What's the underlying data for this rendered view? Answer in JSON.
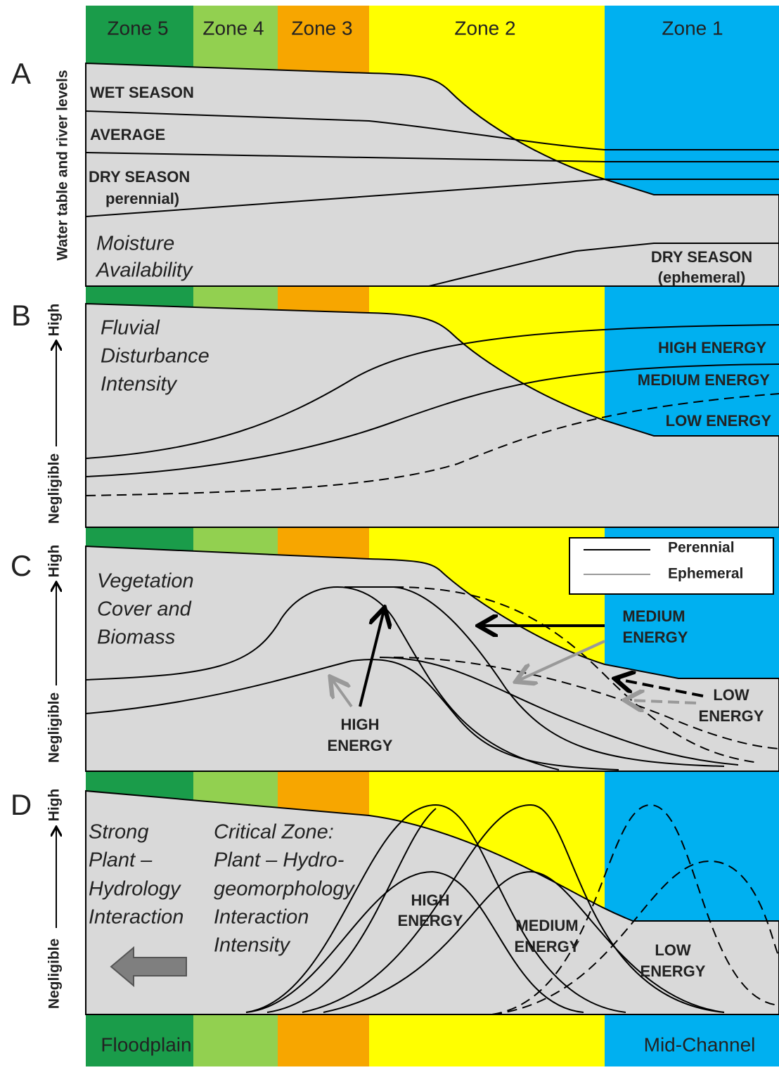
{
  "zones": [
    "Zone 5",
    "Zone 4",
    "Zone 3",
    "Zone 2",
    "Zone 1"
  ],
  "panels": {
    "A": {
      "letter": "A",
      "axis_label": "Water table and river levels",
      "labels": [
        "WET SEASON",
        "AVERAGE",
        "DRY SEASON",
        "perennial)",
        "Moisture",
        "Availability",
        "DRY SEASON",
        "(ephemeral)"
      ]
    },
    "B": {
      "letter": "B",
      "axis_high": "High",
      "axis_low": "Negligible",
      "title": [
        "Fluvial",
        "Disturbance",
        "Intensity"
      ],
      "labels": [
        "HIGH ENERGY",
        "MEDIUM ENERGY",
        "LOW ENERGY"
      ]
    },
    "C": {
      "letter": "C",
      "axis_high": "High",
      "axis_low": "Negligible",
      "title": [
        "Vegetation",
        "Cover and",
        "Biomass"
      ],
      "legend": [
        "Perennial",
        "Ephemeral"
      ],
      "labels": [
        "MEDIUM",
        "ENERGY",
        "LOW",
        "ENERGY",
        "HIGH",
        "ENERGY"
      ]
    },
    "D": {
      "letter": "D",
      "axis_high": "High",
      "axis_low": "Negligible",
      "left_text": [
        "Strong",
        "Plant –",
        "Hydrology",
        "Interaction"
      ],
      "critical_text": [
        "Critical Zone:",
        "Plant – Hydro-",
        "geomorphology",
        "Interaction",
        "Intensity"
      ],
      "labels": [
        "HIGH",
        "ENERGY",
        "MEDIUM",
        "ENERGY",
        "LOW",
        "ENERGY"
      ]
    }
  },
  "bottom": [
    "Floodplain",
    "Mid-Channel"
  ]
}
